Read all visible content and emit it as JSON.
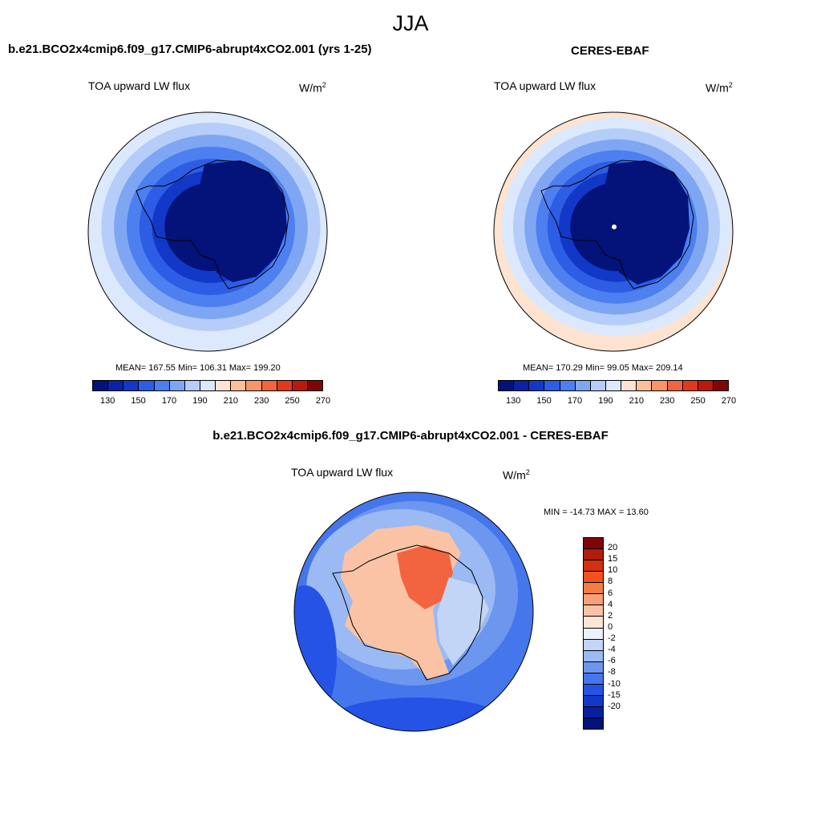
{
  "header": {
    "season": "JJA"
  },
  "panels": [
    {
      "title": "b.e21.BCO2x4cmip6.f09_g17.CMIP6-abrupt4xCO2.001 (yrs 1-25)",
      "variable": "TOA upward LW flux",
      "units": "W/m",
      "units_sup": "2",
      "stats": "MEAN= 167.55  Min= 106.31  Max= 199.20",
      "rings": [
        "#dce8fb",
        "#b5cdf8",
        "#7ea6f2",
        "#4d7ff0",
        "#2d5de4",
        "#1238c8",
        "#03137a"
      ]
    },
    {
      "title": "CERES-EBAF",
      "variable": "TOA upward LW flux",
      "units": "W/m",
      "units_sup": "2",
      "stats": "MEAN= 170.29  Min=  99.05  Max= 209.14",
      "rings": [
        "#fde3d0",
        "#dce8fb",
        "#b5cdf8",
        "#7ea6f2",
        "#4d7ff0",
        "#2d5de4",
        "#1238c8",
        "#03137a"
      ]
    }
  ],
  "abs_colorbar": {
    "colors": [
      "#03137a",
      "#0a22a4",
      "#1238c8",
      "#2d5de4",
      "#4d7ff0",
      "#7ea6f2",
      "#b5cdf8",
      "#dce8fb",
      "#fde3d0",
      "#fcbf9b",
      "#f8956a",
      "#f2643f",
      "#e03a1d",
      "#b91a0b",
      "#800505"
    ],
    "labels": [
      "130",
      "150",
      "170",
      "190",
      "210",
      "230",
      "250",
      "270"
    ]
  },
  "diff": {
    "title": "b.e21.BCO2x4cmip6.f09_g17.CMIP6-abrupt4xCO2.001 - CERES-EBAF",
    "variable": "TOA upward LW flux",
    "units": "W/m",
    "units_sup": "2",
    "minmax": "MIN = -14.73 MAX =  13.60",
    "colorbar": {
      "colors": [
        "#800505",
        "#b01d0a",
        "#d23012",
        "#f2521f",
        "#f57c47",
        "#f8a078",
        "#fac3a5",
        "#fde5d6",
        "#ecf0fa",
        "#c3d5f6",
        "#9bb9f2",
        "#6d96ef",
        "#4676ec",
        "#2553e6",
        "#1238c8",
        "#0a1fa0",
        "#03137a"
      ],
      "labels": [
        "20",
        "15",
        "10",
        "8",
        "6",
        "4",
        "2",
        "0",
        "-2",
        "-4",
        "-6",
        "-8",
        "-10",
        "-15",
        "-20"
      ]
    }
  }
}
